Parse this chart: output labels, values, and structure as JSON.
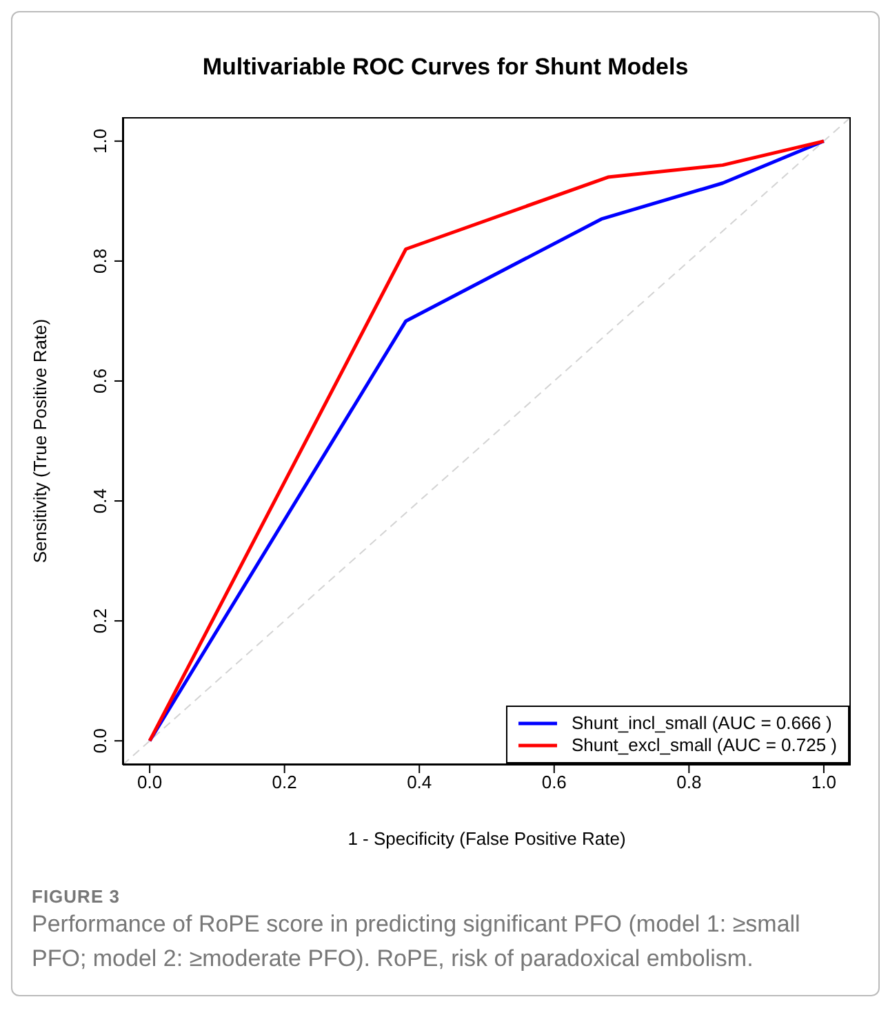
{
  "chart_data": {
    "type": "line",
    "title": "Multivariable ROC Curves for Shunt Models",
    "xlabel": "1 - Specificity (False Positive Rate)",
    "ylabel": "Sensitivity (True Positive Rate)",
    "xlim": [
      -0.04,
      1.04
    ],
    "ylim": [
      -0.04,
      1.04
    ],
    "xticks": [
      {
        "value": 0,
        "label": "0.0"
      },
      0.2,
      0.4,
      0.6,
      0.8,
      {
        "value": 1,
        "label": "1.0"
      }
    ],
    "yticks": [
      {
        "value": 0,
        "label": "0.0"
      },
      0.2,
      0.4,
      0.6,
      0.8,
      {
        "value": 1,
        "label": "1.0"
      }
    ],
    "grid": false,
    "legend": "bottom right",
    "marker": "none",
    "series": [
      {
        "type": "line",
        "color": "#d3d3d3",
        "line_style": "dashed",
        "x": [
          -0.04,
          1.04
        ],
        "values": [
          -0.04,
          1.04
        ]
      },
      {
        "type": "line",
        "name": "Shunt_incl_small (AUC = 0.666 )",
        "color": "#0000ff",
        "x": [
          0,
          0.38,
          0.67,
          0.85,
          1
        ],
        "values": [
          0,
          0.7,
          0.87,
          0.93,
          1
        ]
      },
      {
        "type": "line",
        "name": "Shunt_excl_small (AUC = 0.725 )",
        "color": "#ff0000",
        "x": [
          0,
          0.38,
          0.68,
          0.85,
          1
        ],
        "values": [
          0,
          0.82,
          0.94,
          0.96,
          1
        ]
      }
    ],
    "annotations": [
      "FIGURE 3",
      "Performance of RoPE score in predicting significant PFO (model 1: ≥small PFO; model 2: ≥moderate PFO). RoPE, risk of paradoxical embolism."
    ]
  }
}
